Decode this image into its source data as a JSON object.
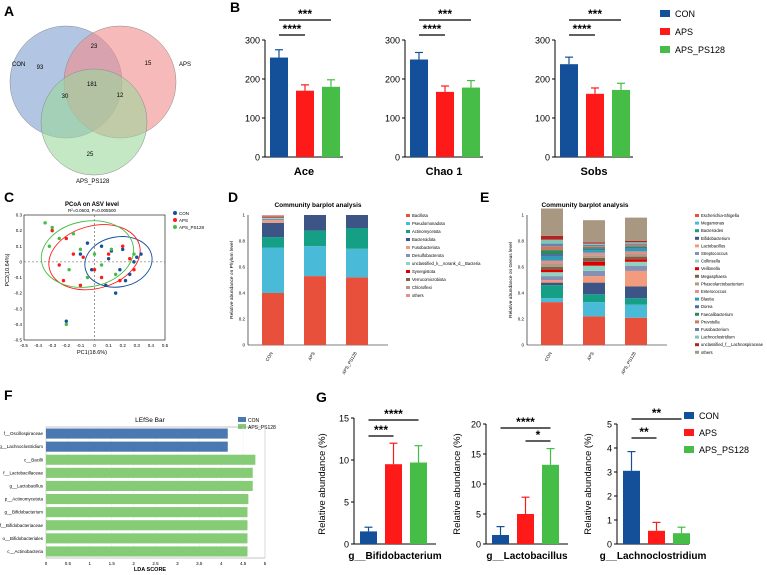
{
  "colors": {
    "con": "#14509a",
    "aps": "#ff1a1a",
    "ps128": "#46bd46",
    "venn_con": "#7f9fce",
    "venn_aps": "#f28c8c",
    "venn_ps128": "#9cd79c",
    "lefse_con": "#4a78b0",
    "lefse_ps128": "#86cc77"
  },
  "chart_data": [
    {
      "panel": "A",
      "type": "venn",
      "sets": [
        "CON",
        "APS",
        "APS_PS128"
      ],
      "regions": {
        "con_only": "93",
        "aps_only": "15",
        "ps128_only": "25",
        "con_aps": "23",
        "con_ps128": "30",
        "aps_ps128": "12",
        "all": "181"
      }
    },
    {
      "panel": "B",
      "type": "bar",
      "legend": [
        "CON",
        "APS",
        "APS_PS128"
      ],
      "charts": [
        {
          "title": "Ace",
          "ylim": [
            0,
            300
          ],
          "yticks": [
            "0",
            "100",
            "200",
            "300"
          ],
          "values": [
            255,
            170,
            180
          ],
          "errors": [
            20,
            15,
            18
          ],
          "sig": [
            "***",
            "****"
          ]
        },
        {
          "title": "Chao 1",
          "ylim": [
            0,
            300
          ],
          "yticks": [
            "0",
            "100",
            "200",
            "300"
          ],
          "values": [
            250,
            167,
            178
          ],
          "errors": [
            18,
            15,
            18
          ],
          "sig": [
            "***",
            "****"
          ]
        },
        {
          "title": "Sobs",
          "ylim": [
            0,
            300
          ],
          "yticks": [
            "0",
            "100",
            "200",
            "300"
          ],
          "values": [
            238,
            162,
            172
          ],
          "errors": [
            18,
            15,
            17
          ],
          "sig": [
            "***",
            "****"
          ]
        }
      ]
    },
    {
      "panel": "C",
      "type": "scatter",
      "title": "PCoA on ASV level",
      "subtitle": "R²=0.0603, P=0.005500",
      "xlabel": "PC1(18.6%)",
      "ylabel": "PC2(10.64%)",
      "xlim": [
        -0.5,
        0.5
      ],
      "ylim": [
        -0.5,
        0.3
      ],
      "xticks": [
        "-0.5",
        "-0.4",
        "-0.3",
        "-0.2",
        "-0.1",
        "0",
        "0.1",
        "0.2",
        "0.3",
        "0.4",
        "0.5"
      ],
      "yticks": [
        "0.3",
        "0.2",
        "0.1",
        "0",
        "-0.1",
        "-0.2",
        "-0.3",
        "-0.4",
        "-0.5"
      ],
      "legend": [
        "CON",
        "APS",
        "APS_PS128"
      ],
      "series": [
        {
          "name": "CON",
          "points": [
            [
              0.3,
              0.03
            ],
            [
              0.33,
              0.05
            ],
            [
              0.28,
              0.0
            ],
            [
              0.2,
              0.08
            ],
            [
              0.18,
              -0.05
            ],
            [
              0.1,
              0.02
            ],
            [
              0.05,
              0.1
            ],
            [
              0.22,
              -0.12
            ],
            [
              0.15,
              -0.2
            ],
            [
              0.08,
              -0.15
            ],
            [
              -0.05,
              0.12
            ],
            [
              -0.1,
              0.05
            ],
            [
              0.25,
              -0.08
            ],
            [
              -0.2,
              -0.38
            ],
            [
              -0.02,
              -0.05
            ],
            [
              0.12,
              0.07
            ]
          ]
        },
        {
          "name": "APS",
          "points": [
            [
              -0.3,
              0.2
            ],
            [
              -0.2,
              0.15
            ],
            [
              -0.15,
              0.05
            ],
            [
              -0.25,
              -0.02
            ],
            [
              0.0,
              -0.05
            ],
            [
              0.05,
              -0.1
            ],
            [
              -0.1,
              -0.15
            ],
            [
              0.1,
              0.05
            ],
            [
              0.2,
              0.1
            ],
            [
              -0.22,
              -0.12
            ],
            [
              0.28,
              -0.05
            ],
            [
              0.18,
              -0.12
            ],
            [
              -0.08,
              0.03
            ],
            [
              0.25,
              0.02
            ]
          ]
        },
        {
          "name": "APS_PS128",
          "points": [
            [
              -0.35,
              0.25
            ],
            [
              -0.3,
              0.22
            ],
            [
              -0.32,
              0.1
            ],
            [
              -0.25,
              0.15
            ],
            [
              -0.18,
              -0.05
            ],
            [
              -0.1,
              0.08
            ],
            [
              0.0,
              0.05
            ],
            [
              0.05,
              -0.02
            ],
            [
              -0.05,
              -0.1
            ],
            [
              0.12,
              0.08
            ],
            [
              0.28,
              0.05
            ],
            [
              -0.2,
              -0.4
            ],
            [
              -0.15,
              0.18
            ],
            [
              0.15,
              -0.08
            ]
          ]
        }
      ]
    },
    {
      "panel": "D",
      "type": "bar",
      "stacked": true,
      "title": "Community barplot analysis",
      "ylabel": "Relative abundance on Phylum level",
      "yticks": [
        "0",
        "0.2",
        "0.4",
        "0.6",
        "0.8",
        "1"
      ],
      "categories": [
        "CON",
        "APS",
        "APS_PS128"
      ],
      "series": [
        {
          "name": "Bacillota",
          "color": "#e8503b",
          "values": [
            0.4,
            0.53,
            0.52
          ]
        },
        {
          "name": "Pseudomonadota",
          "color": "#49bbd9",
          "values": [
            0.35,
            0.23,
            0.22
          ]
        },
        {
          "name": "Actinomycetota",
          "color": "#15a085",
          "values": [
            0.08,
            0.12,
            0.16
          ]
        },
        {
          "name": "Bacteroidota",
          "color": "#3d5487",
          "values": [
            0.11,
            0.12,
            0.1
          ]
        },
        {
          "name": "Fusobacteriota",
          "color": "#f39b7f",
          "values": [
            0.02,
            0.0,
            0.0
          ]
        },
        {
          "name": "Desulfobacterota",
          "color": "#8491b4",
          "values": [
            0.01,
            0.0,
            0.0
          ]
        },
        {
          "name": "unclassified_k__norank_d__Bacteria",
          "color": "#91d1c2",
          "values": [
            0.01,
            0.0,
            0.0
          ]
        },
        {
          "name": "Synergistota",
          "color": "#dc0000",
          "values": [
            0.005,
            0.0,
            0.0
          ]
        },
        {
          "name": "Verrucomicrobiota",
          "color": "#7e6148",
          "values": [
            0.005,
            0.0,
            0.0
          ]
        },
        {
          "name": "Chloroflexi",
          "color": "#b09c85",
          "values": [
            0.005,
            0.0,
            0.0
          ]
        },
        {
          "name": "others",
          "color": "#e58e8e",
          "values": [
            0.005,
            0.0,
            0.0
          ]
        }
      ]
    },
    {
      "panel": "E",
      "type": "bar",
      "stacked": true,
      "title": "Community barplot analysis",
      "ylabel": "Relative abundance on Genus level",
      "yticks": [
        "0",
        "0.2",
        "0.4",
        "0.6",
        "0.8",
        "1"
      ],
      "categories": [
        "CON",
        "APS",
        "APS_PS128"
      ],
      "series": [
        {
          "name": "Escherichia-Shigella",
          "color": "#e8503b",
          "values": [
            0.33,
            0.22,
            0.21
          ]
        },
        {
          "name": "Megamonas",
          "color": "#49bbd9",
          "values": [
            0.03,
            0.11,
            0.1
          ]
        },
        {
          "name": "Bacteroides",
          "color": "#15a085",
          "values": [
            0.1,
            0.06,
            0.05
          ]
        },
        {
          "name": "Bifidobacterium",
          "color": "#3d5487",
          "values": [
            0.02,
            0.09,
            0.09
          ]
        },
        {
          "name": "Lactobacillus",
          "color": "#f39b7f",
          "values": [
            0.02,
            0.05,
            0.12
          ]
        },
        {
          "name": "Streptococcus",
          "color": "#8491b4",
          "values": [
            0.03,
            0.04,
            0.04
          ]
        },
        {
          "name": "Collinsella",
          "color": "#91d1c2",
          "values": [
            0.03,
            0.04,
            0.03
          ]
        },
        {
          "name": "Veillonella",
          "color": "#dc0000",
          "values": [
            0.02,
            0.03,
            0.02
          ]
        },
        {
          "name": "Megasphaera",
          "color": "#7e6148",
          "values": [
            0.02,
            0.03,
            0.02
          ]
        },
        {
          "name": "Phascolarctobacterium",
          "color": "#b09c85",
          "values": [
            0.03,
            0.02,
            0.02
          ]
        },
        {
          "name": "Enterococcus",
          "color": "#e58e8e",
          "values": [
            0.02,
            0.02,
            0.02
          ]
        },
        {
          "name": "Blautia",
          "color": "#26a0b8",
          "values": [
            0.03,
            0.02,
            0.02
          ]
        },
        {
          "name": "Dorea",
          "color": "#4d6fa6",
          "values": [
            0.02,
            0.01,
            0.01
          ]
        },
        {
          "name": "Faecalibacterium",
          "color": "#2e8b57",
          "values": [
            0.03,
            0.01,
            0.01
          ]
        },
        {
          "name": "Prevotella",
          "color": "#c97a62",
          "values": [
            0.03,
            0.01,
            0.01
          ]
        },
        {
          "name": "Fusobacterium",
          "color": "#6b7fb0",
          "values": [
            0.02,
            0.01,
            0.01
          ]
        },
        {
          "name": "Lachnoclostridium",
          "color": "#7fc7b4",
          "values": [
            0.03,
            0.01,
            0.01
          ]
        },
        {
          "name": "unclassified_f__Lachnospiraceae",
          "color": "#b22222",
          "values": [
            0.03,
            0.01,
            0.01
          ]
        },
        {
          "name": "others",
          "color": "#a89882",
          "values": [
            0.21,
            0.17,
            0.18
          ]
        }
      ]
    },
    {
      "panel": "F",
      "type": "bar",
      "orientation": "horizontal",
      "title": "LEfSe Bar",
      "xlabel": "LDA SCORE",
      "xlim": [
        0,
        5
      ],
      "xticks": [
        "0",
        "0.5",
        "1",
        "1.5",
        "2",
        "2.5",
        "3",
        "3.5",
        "4",
        "4.5",
        "5"
      ],
      "legend": [
        "CON",
        "APS_PS128"
      ],
      "items": [
        {
          "label": "f__Oscillospiraceae",
          "group": "CON",
          "value": 4.15
        },
        {
          "label": "g__Lachnoclostridium",
          "group": "CON",
          "value": 4.15
        },
        {
          "label": "c__Bacilli",
          "group": "APS_PS128",
          "value": 4.78
        },
        {
          "label": "f__Lactobacillaceae",
          "group": "APS_PS128",
          "value": 4.72
        },
        {
          "label": "g__Lactobacillus",
          "group": "APS_PS128",
          "value": 4.72
        },
        {
          "label": "p__Actinomycetota",
          "group": "APS_PS128",
          "value": 4.62
        },
        {
          "label": "g__Bifidobacterium",
          "group": "APS_PS128",
          "value": 4.6
        },
        {
          "label": "f__Bifidobacteriaceae",
          "group": "APS_PS128",
          "value": 4.6
        },
        {
          "label": "o__Bifidobacteriales",
          "group": "APS_PS128",
          "value": 4.6
        },
        {
          "label": "c__Actinobacteria",
          "group": "APS_PS128",
          "value": 4.6
        }
      ]
    },
    {
      "panel": "G",
      "type": "bar",
      "legend": [
        "CON",
        "APS",
        "APS_PS128"
      ],
      "ylabel": "Relative abundance (%)",
      "charts": [
        {
          "title": "g__Bifidobacterium",
          "ylim": [
            0,
            15
          ],
          "yticks": [
            "0",
            "5",
            "10",
            "15"
          ],
          "values": [
            1.5,
            9.5,
            9.7
          ],
          "errors": [
            0.5,
            2.5,
            2.0
          ],
          "sig": [
            "****",
            "***"
          ]
        },
        {
          "title": "g__Lactobacillus",
          "ylim": [
            0,
            20
          ],
          "yticks": [
            "0",
            "5",
            "10",
            "15",
            "20"
          ],
          "values": [
            1.5,
            5.0,
            13.2
          ],
          "errors": [
            1.4,
            2.8,
            2.7
          ],
          "sig": [
            "****",
            "*"
          ]
        },
        {
          "title": "g__Lachnoclostridium",
          "ylim": [
            0,
            5
          ],
          "yticks": [
            "0",
            "1",
            "2",
            "3",
            "4",
            "5"
          ],
          "values": [
            3.05,
            0.55,
            0.45
          ],
          "errors": [
            0.8,
            0.35,
            0.25
          ],
          "sig": [
            "**",
            "**"
          ]
        }
      ]
    }
  ]
}
